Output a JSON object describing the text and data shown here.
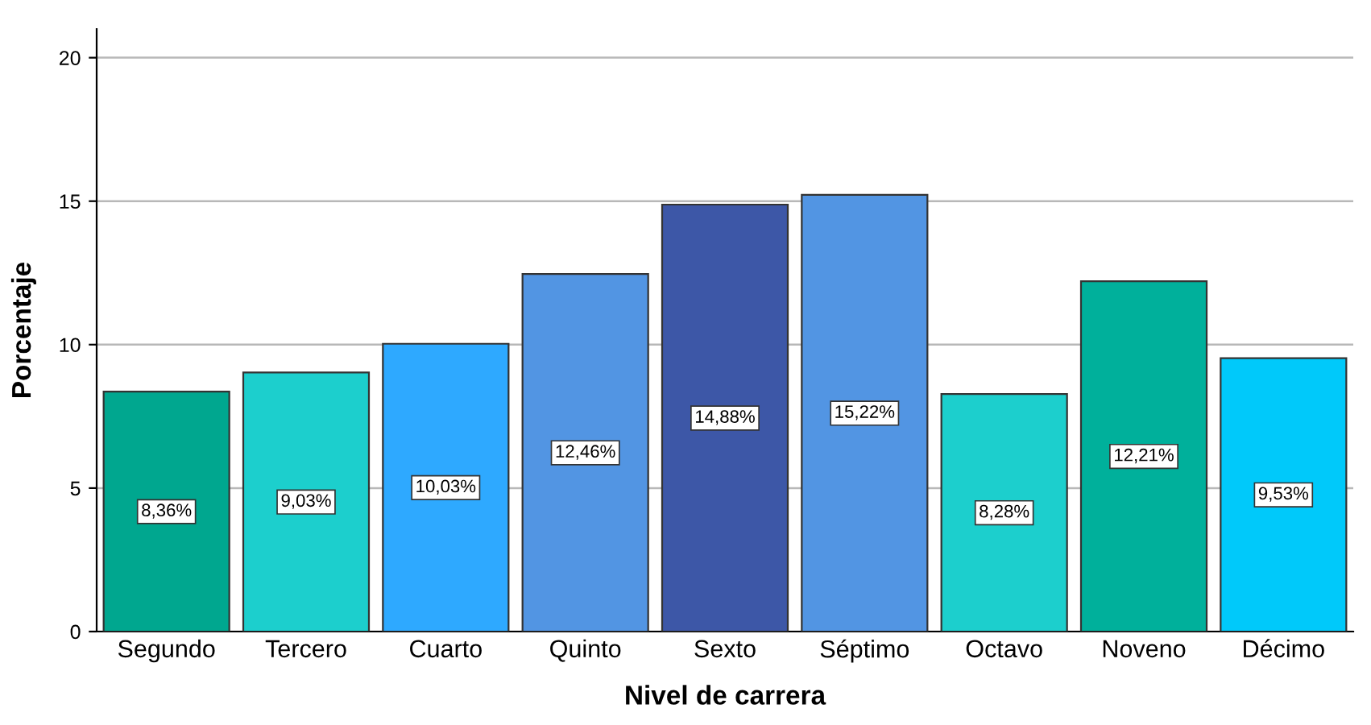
{
  "chart_data": {
    "type": "bar",
    "xlabel": "Nivel de carrera",
    "ylabel": "Porcentaje",
    "categories": [
      "Segundo",
      "Tercero",
      "Cuarto",
      "Quinto",
      "Sexto",
      "Séptimo",
      "Octavo",
      "Noveno",
      "Décimo"
    ],
    "values": [
      8.36,
      9.03,
      10.03,
      12.46,
      14.88,
      15.22,
      8.28,
      12.21,
      9.53
    ],
    "value_labels": [
      "8,36%",
      "9,03%",
      "10,03%",
      "12,46%",
      "14,88%",
      "15,22%",
      "8,28%",
      "12,21%",
      "9,53%"
    ],
    "colors": [
      "#00a78f",
      "#1ccfcd",
      "#2ea9ff",
      "#5295e3",
      "#3d57a7",
      "#5295e3",
      "#1ccfcd",
      "#00b09b",
      "#00c9fa"
    ],
    "ylim": [
      0,
      21
    ],
    "yticks": [
      0,
      5,
      10,
      15,
      20
    ],
    "grid": "y"
  }
}
